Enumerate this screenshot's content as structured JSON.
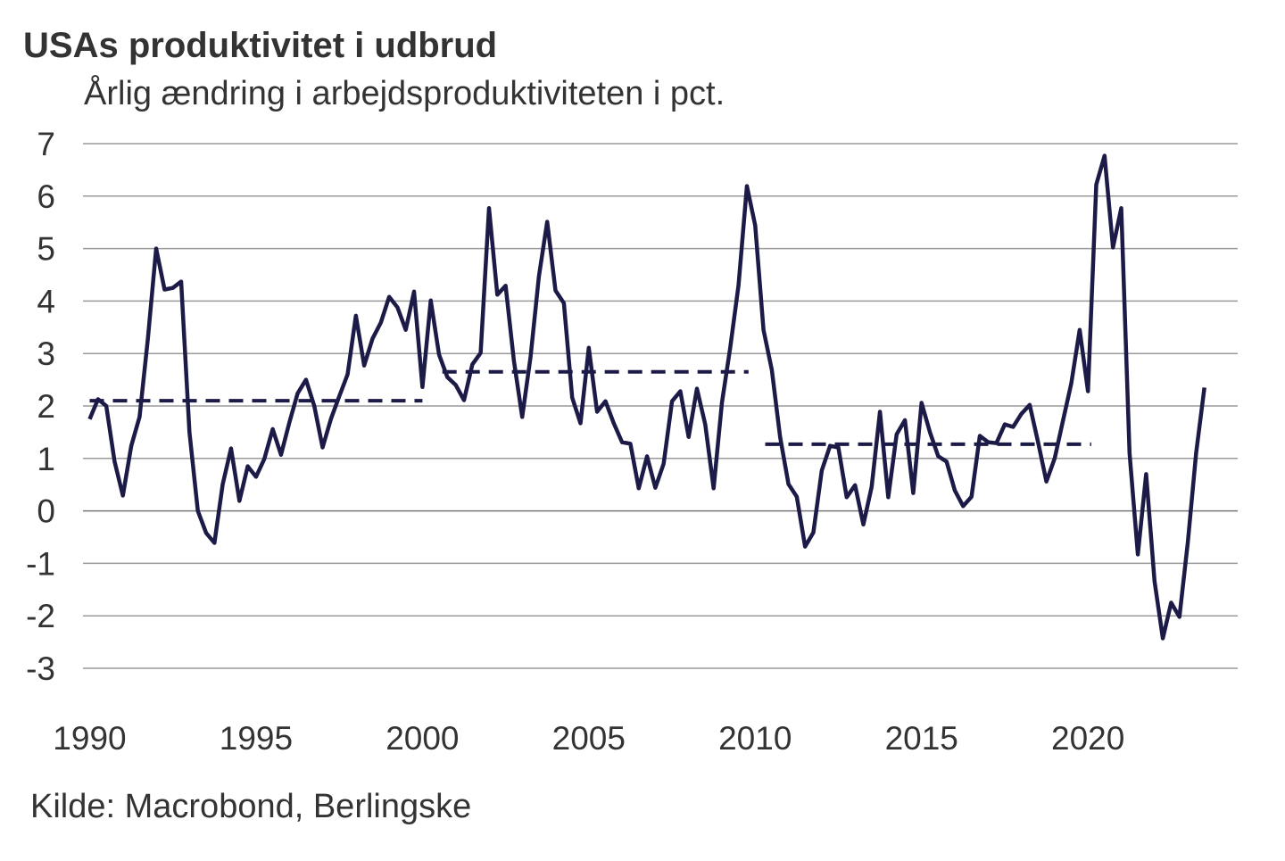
{
  "chart_data": {
    "type": "line",
    "title": "USAs produktivitet i udbrud",
    "subtitle": "Årlig ændring i arbejdsproduktiviteten i pct.",
    "source": "Kilde: Macrobond, Berlingske",
    "xlim": [
      1989.8,
      2024.5
    ],
    "xticks": [
      1990,
      1995,
      2000,
      2005,
      2010,
      2015,
      2020
    ],
    "ylim": [
      -3,
      7
    ],
    "yticks": [
      -3,
      -2,
      -1,
      0,
      1,
      2,
      3,
      4,
      5,
      6,
      7
    ],
    "grid": true,
    "series": [
      {
        "color": "#1c1a47",
        "dashed": false,
        "x": [
          1990,
          1990.25,
          1990.5,
          1990.75,
          1991,
          1991.25,
          1991.5,
          1991.75,
          1992,
          1992.25,
          1992.5,
          1992.75,
          1993,
          1993.25,
          1993.5,
          1993.75,
          1994,
          1994.25,
          1994.5,
          1994.75,
          1995,
          1995.25,
          1995.5,
          1995.75,
          1996,
          1996.25,
          1996.5,
          1996.75,
          1997,
          1997.25,
          1997.5,
          1997.75,
          1998,
          1998.25,
          1998.5,
          1998.75,
          1999,
          1999.25,
          1999.5,
          1999.75,
          2000,
          2000.25,
          2000.5,
          2000.75,
          2001,
          2001.25,
          2001.5,
          2001.75,
          2002,
          2002.25,
          2002.5,
          2002.75,
          2003,
          2003.25,
          2003.5,
          2003.75,
          2004,
          2004.25,
          2004.5,
          2004.75,
          2005,
          2005.25,
          2005.5,
          2005.75,
          2006,
          2006.25,
          2006.5,
          2006.75,
          2007,
          2007.25,
          2007.5,
          2007.75,
          2008,
          2008.25,
          2008.5,
          2008.75,
          2009,
          2009.25,
          2009.5,
          2009.75,
          2010,
          2010.25,
          2010.5,
          2010.75,
          2011,
          2011.25,
          2011.5,
          2011.75,
          2012,
          2012.25,
          2012.5,
          2012.75,
          2013,
          2013.25,
          2013.5,
          2013.75,
          2014,
          2014.25,
          2014.5,
          2014.75,
          2015,
          2015.25,
          2015.5,
          2015.75,
          2016,
          2016.25,
          2016.5,
          2016.75,
          2017,
          2017.25,
          2017.5,
          2017.75,
          2018,
          2018.25,
          2018.5,
          2018.75,
          2019,
          2019.25,
          2019.5,
          2019.75,
          2020,
          2020.25,
          2020.5,
          2020.75,
          2021,
          2021.25,
          2021.5,
          2021.75,
          2022,
          2022.25,
          2022.5,
          2022.75,
          2023,
          2023.25,
          2023.5
        ],
        "values": [
          1.75,
          2.13,
          2.0,
          0.94,
          0.29,
          1.24,
          1.79,
          3.28,
          5.0,
          4.22,
          4.25,
          4.37,
          1.5,
          0.0,
          -0.42,
          -0.61,
          0.51,
          1.19,
          0.19,
          0.85,
          0.65,
          0.99,
          1.56,
          1.07,
          1.68,
          2.24,
          2.5,
          2.0,
          1.21,
          1.75,
          2.18,
          2.6,
          3.72,
          2.77,
          3.28,
          3.59,
          4.08,
          3.88,
          3.45,
          4.18,
          2.36,
          4.01,
          2.98,
          2.55,
          2.4,
          2.11,
          2.79,
          3.01,
          5.77,
          4.12,
          4.29,
          2.86,
          1.79,
          2.94,
          4.47,
          5.51,
          4.2,
          3.96,
          2.16,
          1.67,
          3.11,
          1.89,
          2.09,
          1.67,
          1.31,
          1.28,
          0.43,
          1.04,
          0.44,
          0.9,
          2.09,
          2.28,
          1.41,
          2.33,
          1.65,
          0.43,
          2.06,
          3.11,
          4.3,
          6.19,
          5.44,
          3.45,
          2.69,
          1.41,
          0.51,
          0.27,
          -0.68,
          -0.41,
          0.77,
          1.24,
          1.21,
          0.26,
          0.49,
          -0.26,
          0.46,
          1.89,
          0.26,
          1.46,
          1.73,
          0.34,
          2.06,
          1.5,
          1.04,
          0.94,
          0.39,
          0.09,
          0.27,
          1.43,
          1.31,
          1.29,
          1.65,
          1.6,
          1.85,
          2.02,
          1.31,
          0.56,
          1.0,
          1.72,
          2.43,
          3.45,
          2.28,
          6.22,
          6.77,
          5.02,
          5.77,
          1.1,
          -0.83,
          0.7,
          -1.34,
          -2.43,
          -1.75,
          -2.02,
          -0.6,
          1.1,
          2.35
        ]
      },
      {
        "color": "#1c1a47",
        "dashed": true,
        "x": [
          1990,
          2000
        ],
        "values": [
          2.1,
          2.1
        ]
      },
      {
        "color": "#1c1a47",
        "dashed": true,
        "x": [
          2000.6,
          2009.8
        ],
        "values": [
          2.65,
          2.65
        ]
      },
      {
        "color": "#1c1a47",
        "dashed": true,
        "x": [
          2010.3,
          2020.1
        ],
        "values": [
          1.27,
          1.27
        ]
      }
    ]
  }
}
